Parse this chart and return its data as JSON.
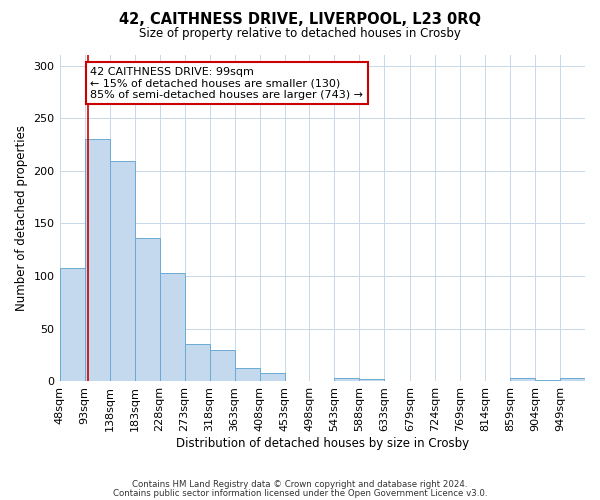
{
  "title": "42, CAITHNESS DRIVE, LIVERPOOL, L23 0RQ",
  "subtitle": "Size of property relative to detached houses in Crosby",
  "xlabel": "Distribution of detached houses by size in Crosby",
  "ylabel": "Number of detached properties",
  "bin_labels": [
    "48sqm",
    "93sqm",
    "138sqm",
    "183sqm",
    "228sqm",
    "273sqm",
    "318sqm",
    "363sqm",
    "408sqm",
    "453sqm",
    "498sqm",
    "543sqm",
    "588sqm",
    "633sqm",
    "679sqm",
    "724sqm",
    "769sqm",
    "814sqm",
    "859sqm",
    "904sqm",
    "949sqm"
  ],
  "bin_left_edges": [
    48,
    93,
    138,
    183,
    228,
    273,
    318,
    363,
    408,
    453,
    498,
    543,
    588,
    633,
    679,
    724,
    769,
    814,
    859,
    904,
    949
  ],
  "bin_width": 45,
  "bar_heights": [
    108,
    230,
    209,
    136,
    103,
    36,
    30,
    13,
    8,
    0,
    0,
    3,
    2,
    0,
    0,
    0,
    0,
    0,
    3,
    1,
    3
  ],
  "bar_fill_color": "#c5d9ee",
  "bar_edge_color": "#6aaad4",
  "reference_line_x": 99,
  "reference_line_color": "#cc0000",
  "annotation_line1": "42 CAITHNESS DRIVE: 99sqm",
  "annotation_line2": "← 15% of detached houses are smaller (130)",
  "annotation_line3": "85% of semi-detached houses are larger (743) →",
  "annotation_box_edge_color": "#cc0000",
  "ylim": [
    0,
    310
  ],
  "yticks": [
    0,
    50,
    100,
    150,
    200,
    250,
    300
  ],
  "footer_line1": "Contains HM Land Registry data © Crown copyright and database right 2024.",
  "footer_line2": "Contains public sector information licensed under the Open Government Licence v3.0.",
  "background_color": "#ffffff",
  "grid_color": "#c8d8e8"
}
